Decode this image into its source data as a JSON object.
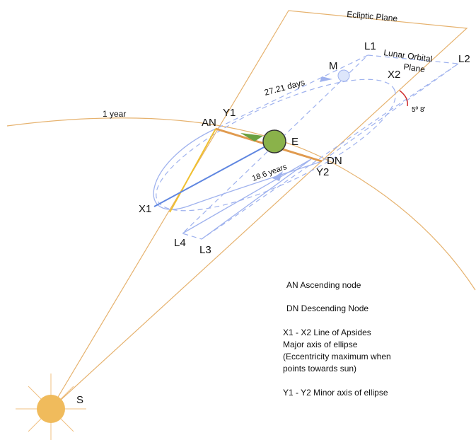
{
  "labels": {
    "ecliptic_plane": "Ecliptic Plane",
    "l1": "L1",
    "lunar_orbital": "Lunar Orbital",
    "plane": "Plane",
    "l2": "L2",
    "m": "M",
    "x2": "X2",
    "period_moon": "27.21 days",
    "one_year": "1 year",
    "an": "AN",
    "y1": "Y1",
    "e": "E",
    "dn": "DN",
    "y2": "Y2",
    "nodal_period": "18.6 years",
    "inclination": "5º 8'",
    "x1": "X1",
    "l4": "L4",
    "l3": "L3",
    "s": "S"
  },
  "legend": [
    "AN Ascending node",
    "DN Descending Node",
    "X1 - X2 Line of Apsides",
    "Major axis of ellipse",
    "(Eccentricity maximum when",
    "points towards sun)",
    "Y1 - Y2 Minor axis of ellipse"
  ]
}
